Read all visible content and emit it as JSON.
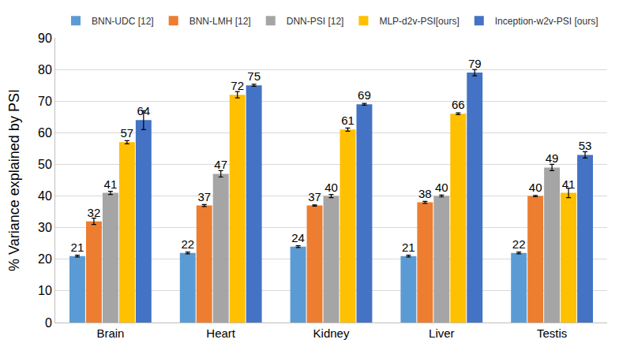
{
  "chart_data": {
    "type": "bar",
    "y_label": "% Variance explained by PSI",
    "categories": [
      "Brain",
      "Heart",
      "Kidney",
      "Liver",
      "Testis"
    ],
    "series": [
      {
        "name": "BNN-UDC [12]",
        "color": "#5B9BD5",
        "values": [
          21,
          22,
          24,
          21,
          22
        ],
        "error": [
          0.3,
          0.3,
          0.3,
          0.3,
          0.3
        ]
      },
      {
        "name": "BNN-LMH [12]",
        "color": "#ED7D31",
        "values": [
          32,
          37,
          37,
          38,
          40
        ],
        "error": [
          1,
          0.3,
          0.2,
          0.3,
          0.2
        ]
      },
      {
        "name": "DNN-PSI [12]",
        "color": "#A5A5A5",
        "values": [
          41,
          47,
          40,
          40,
          49
        ],
        "error": [
          0.5,
          1,
          0.5,
          0.3,
          1
        ]
      },
      {
        "name": "MLP-d2v-PSI[ours]",
        "color": "#FFC000",
        "values": [
          57,
          72,
          61,
          66,
          41
        ],
        "error": [
          0.5,
          1,
          0.5,
          0.3,
          1.5
        ]
      },
      {
        "name": "Inception-w2v-PSI [ours]",
        "color": "#4472C4",
        "values": [
          64,
          75,
          69,
          79,
          53
        ],
        "error": [
          3,
          0.3,
          0.3,
          1,
          1
        ]
      }
    ],
    "ylim": [
      0,
      90
    ],
    "yticks": [
      0,
      10,
      20,
      30,
      40,
      50,
      60,
      70,
      80,
      90
    ],
    "grid": true,
    "legend": "top",
    "data_labels": true
  }
}
